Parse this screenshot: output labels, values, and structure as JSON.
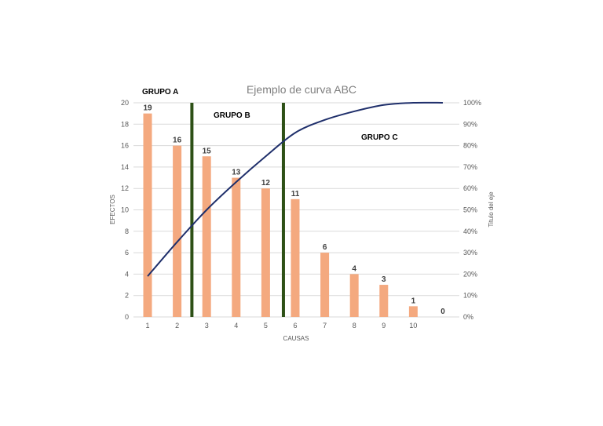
{
  "chart_data": {
    "type": "bar",
    "title": "Ejemplo de curva ABC",
    "xlabel": "CAUSAS",
    "ylabel": "EFECTOS",
    "y2label": "Titulo del eje",
    "categories": [
      "1",
      "2",
      "3",
      "4",
      "5",
      "6",
      "7",
      "8",
      "9",
      "10",
      ""
    ],
    "series": [
      {
        "type": "bar",
        "axis": "left",
        "values": [
          19,
          16,
          15,
          13,
          12,
          11,
          6,
          4,
          3,
          1,
          0
        ],
        "color": "#f4a97f"
      },
      {
        "type": "line",
        "axis": "right",
        "values": [
          0.19,
          0.35,
          0.5,
          0.63,
          0.75,
          0.86,
          0.92,
          0.96,
          0.99,
          1.0,
          1.0
        ],
        "color": "#1f2f6b"
      }
    ],
    "ylim": [
      0,
      20
    ],
    "yticks": [
      0,
      2,
      4,
      6,
      8,
      10,
      12,
      14,
      16,
      18,
      20
    ],
    "y2lim": [
      0,
      1
    ],
    "y2ticks": [
      "0%",
      "10%",
      "20%",
      "30%",
      "40%",
      "50%",
      "60%",
      "70%",
      "80%",
      "90%",
      "100%"
    ],
    "grid": true,
    "dividers": [
      {
        "after_category_index": 1.5,
        "color": "#2d5016"
      },
      {
        "after_category_index": 4.6,
        "color": "#2d5016"
      }
    ],
    "groups": [
      {
        "label": "GRUPO A"
      },
      {
        "label": "GRUPO B"
      },
      {
        "label": "GRUPO C"
      }
    ]
  }
}
